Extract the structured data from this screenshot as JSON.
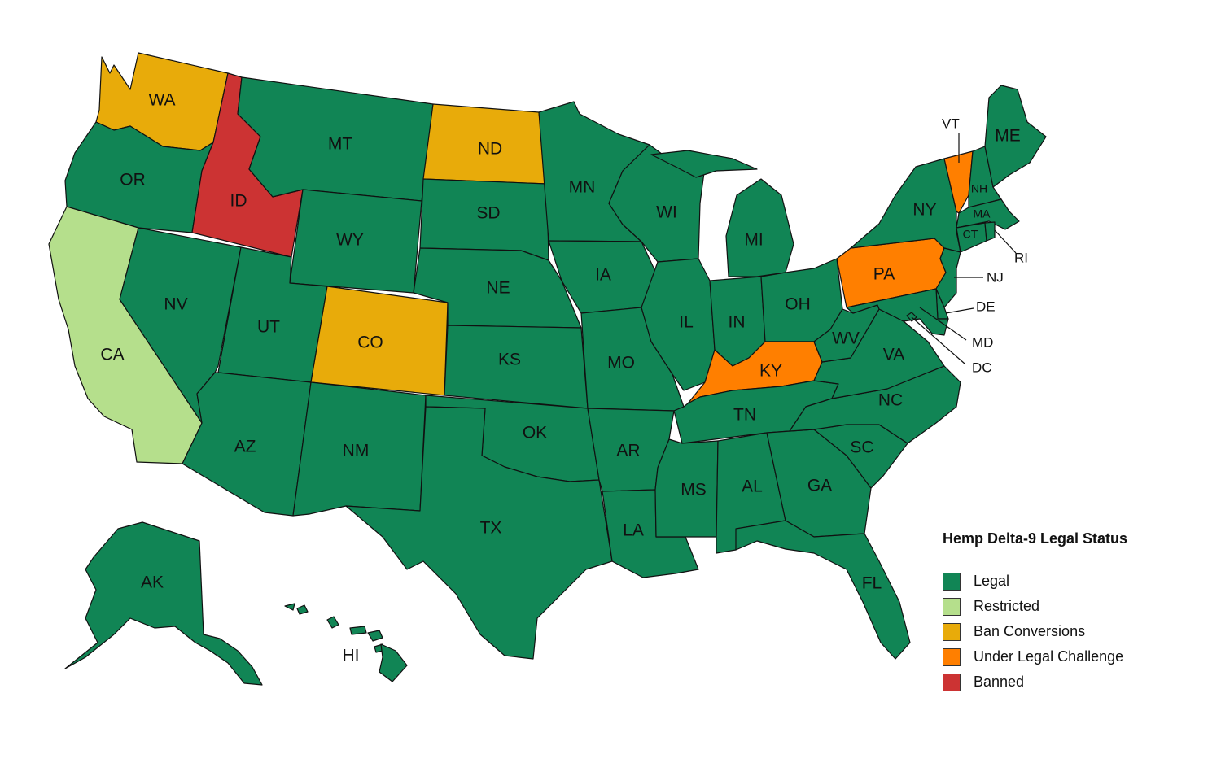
{
  "title": "Hemp Delta-9 Legal Status",
  "categories": {
    "legal": {
      "label": "Legal",
      "color": "#118555"
    },
    "restricted": {
      "label": "Restricted",
      "color": "#b5df8c"
    },
    "ban_conversions": {
      "label": "Ban Conversions",
      "color": "#e8ab0a"
    },
    "under_legal_challenge": {
      "label": "Under Legal Challenge",
      "color": "#ff7f00"
    },
    "banned": {
      "label": "Banned",
      "color": "#cc3333"
    }
  },
  "legend_order": [
    "legal",
    "restricted",
    "ban_conversions",
    "under_legal_challenge",
    "banned"
  ],
  "states": {
    "WA": "ban_conversions",
    "OR": "legal",
    "CA": "restricted",
    "ID": "banned",
    "NV": "legal",
    "MT": "legal",
    "WY": "legal",
    "UT": "legal",
    "AZ": "legal",
    "CO": "ban_conversions",
    "NM": "legal",
    "ND": "ban_conversions",
    "SD": "legal",
    "NE": "legal",
    "KS": "legal",
    "OK": "legal",
    "TX": "legal",
    "MN": "legal",
    "IA": "legal",
    "MO": "legal",
    "AR": "legal",
    "LA": "legal",
    "WI": "legal",
    "IL": "legal",
    "MI": "legal",
    "IN": "legal",
    "OH": "legal",
    "KY": "under_legal_challenge",
    "TN": "legal",
    "MS": "legal",
    "AL": "legal",
    "GA": "legal",
    "FL": "legal",
    "SC": "legal",
    "NC": "legal",
    "VA": "legal",
    "WV": "legal",
    "PA": "under_legal_challenge",
    "NY": "legal",
    "VT": "under_legal_challenge",
    "NH": "legal",
    "ME": "legal",
    "MA": "legal",
    "RI": "legal",
    "CT": "legal",
    "NJ": "legal",
    "DE": "legal",
    "MD": "legal",
    "DC": "legal",
    "AK": "legal",
    "HI": "legal"
  },
  "state_labels": {
    "WA": "WA",
    "OR": "OR",
    "CA": "CA",
    "ID": "ID",
    "NV": "NV",
    "MT": "MT",
    "WY": "WY",
    "UT": "UT",
    "AZ": "AZ",
    "CO": "CO",
    "NM": "NM",
    "ND": "ND",
    "SD": "SD",
    "NE": "NE",
    "KS": "KS",
    "OK": "OK",
    "TX": "TX",
    "MN": "MN",
    "IA": "IA",
    "MO": "MO",
    "AR": "AR",
    "LA": "LA",
    "WI": "WI",
    "IL": "IL",
    "MI": "MI",
    "IN": "IN",
    "OH": "OH",
    "KY": "KY",
    "TN": "TN",
    "MS": "MS",
    "AL": "AL",
    "GA": "GA",
    "FL": "FL",
    "SC": "SC",
    "NC": "NC",
    "VA": "VA",
    "WV": "WV",
    "PA": "PA",
    "NY": "NY",
    "VT": "VT",
    "NH": "NH",
    "ME": "ME",
    "MA": "MA",
    "RI": "RI",
    "CT": "CT",
    "NJ": "NJ",
    "DE": "DE",
    "MD": "MD",
    "DC": "DC",
    "AK": "AK",
    "HI": "HI"
  }
}
